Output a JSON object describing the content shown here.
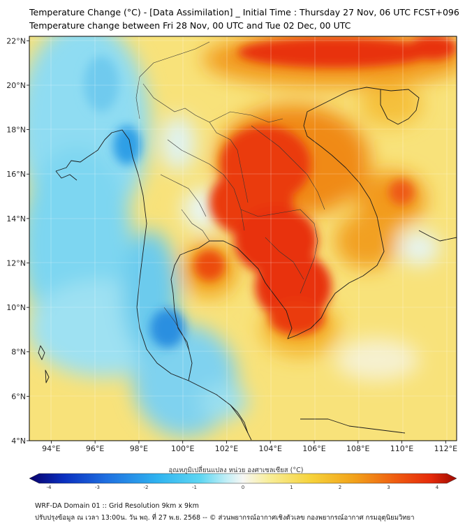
{
  "header": {
    "title_line1": "Temperature Change (°C) - [Data Assimilation] _ Initial Time : Thursday 27 Nov, 06 UTC FCST+096",
    "title_line2": "Temperature change between Fri 28 Nov, 00 UTC and Tue 02 Dec, 00 UTC"
  },
  "map": {
    "lat_labels": [
      "22°N",
      "20°N",
      "18°N",
      "16°N",
      "14°N",
      "12°N",
      "10°N",
      "8°N",
      "6°N",
      "4°N"
    ],
    "lon_labels": [
      "94°E",
      "96°E",
      "98°E",
      "100°E",
      "102°E",
      "104°E",
      "106°E",
      "108°E",
      "110°E",
      "112°E"
    ],
    "lat_range": [
      4,
      22.2
    ],
    "lon_range": [
      93,
      112.5
    ]
  },
  "colorbar": {
    "label": "อุณหภูมิเปลี่ยนแปลง หน่วย องศาเซลเซียส (°C)",
    "ticks": [
      "-4",
      "-3",
      "-2",
      "-1",
      "0",
      "1",
      "2",
      "3",
      "4"
    ],
    "min": -4,
    "max": 4,
    "colors": [
      "#08006a",
      "#0a2fbf",
      "#1f6fe0",
      "#2fb3f0",
      "#5ed6f2",
      "#bfeef6",
      "#f7f7f4",
      "#f8ee9a",
      "#f6d23a",
      "#f2a21a",
      "#ef5a10",
      "#e52a0a",
      "#9e0a00"
    ]
  },
  "footer": {
    "line1": "WRF-DA Domain 01 :: Grid Resolution 9km x 9km",
    "line2": "ปรับปรุงข้อมูล ณ เวลา 13:00น. วัน พฤ. ที่ 27 พ.ย. 2568 -- © ส่วนพยากรณ์อากาศเชิงตัวเลข กองพยากรณ์อากาศ กรมอุตุนิยมวิทยา"
  }
}
